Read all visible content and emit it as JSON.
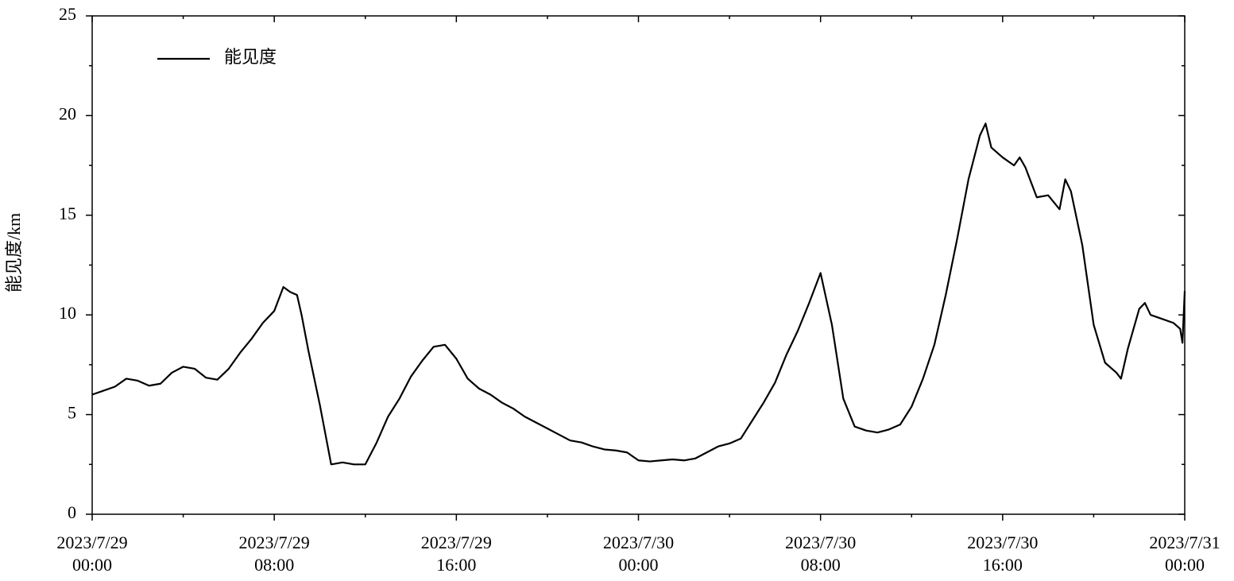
{
  "chart_data": {
    "type": "line",
    "y_label": "能见度/km",
    "legend": "upper left",
    "x": [
      "2023/7/29 00:00",
      "2023/7/29 01:00",
      "2023/7/29 01:30",
      "2023/7/29 02:00",
      "2023/7/29 02:30",
      "2023/7/29 03:00",
      "2023/7/29 03:30",
      "2023/7/29 04:00",
      "2023/7/29 04:30",
      "2023/7/29 05:00",
      "2023/7/29 05:30",
      "2023/7/29 06:00",
      "2023/7/29 06:30",
      "2023/7/29 07:00",
      "2023/7/29 07:30",
      "2023/7/29 08:00",
      "2023/7/29 08:24",
      "2023/7/29 08:42",
      "2023/7/29 09:00",
      "2023/7/29 09:12",
      "2023/7/29 09:30",
      "2023/7/29 10:00",
      "2023/7/29 10:30",
      "2023/7/29 11:00",
      "2023/7/29 11:30",
      "2023/7/29 12:00",
      "2023/7/29 12:30",
      "2023/7/29 13:00",
      "2023/7/29 13:30",
      "2023/7/29 14:00",
      "2023/7/29 14:30",
      "2023/7/29 15:00",
      "2023/7/29 15:30",
      "2023/7/29 16:00",
      "2023/7/29 16:30",
      "2023/7/29 17:00",
      "2023/7/29 17:30",
      "2023/7/29 18:00",
      "2023/7/29 18:30",
      "2023/7/29 19:00",
      "2023/7/29 19:30",
      "2023/7/29 20:00",
      "2023/7/29 20:30",
      "2023/7/29 21:00",
      "2023/7/29 21:30",
      "2023/7/29 22:00",
      "2023/7/29 22:30",
      "2023/7/29 23:00",
      "2023/7/29 23:30",
      "2023/7/30 00:00",
      "2023/7/30 00:30",
      "2023/7/30 01:00",
      "2023/7/30 01:30",
      "2023/7/30 02:00",
      "2023/7/30 02:30",
      "2023/7/30 03:00",
      "2023/7/30 03:30",
      "2023/7/30 04:00",
      "2023/7/30 04:30",
      "2023/7/30 05:00",
      "2023/7/30 05:30",
      "2023/7/30 06:00",
      "2023/7/30 06:30",
      "2023/7/30 07:00",
      "2023/7/30 07:30",
      "2023/7/30 08:00",
      "2023/7/30 08:30",
      "2023/7/30 09:00",
      "2023/7/30 09:30",
      "2023/7/30 10:00",
      "2023/7/30 10:30",
      "2023/7/30 11:00",
      "2023/7/30 11:30",
      "2023/7/30 12:00",
      "2023/7/30 12:30",
      "2023/7/30 13:00",
      "2023/7/30 13:30",
      "2023/7/30 14:00",
      "2023/7/30 14:30",
      "2023/7/30 15:00",
      "2023/7/30 15:15",
      "2023/7/30 15:30",
      "2023/7/30 16:00",
      "2023/7/30 16:30",
      "2023/7/30 16:45",
      "2023/7/30 17:00",
      "2023/7/30 17:30",
      "2023/7/30 18:00",
      "2023/7/30 18:30",
      "2023/7/30 18:45",
      "2023/7/30 19:00",
      "2023/7/30 19:30",
      "2023/7/30 20:00",
      "2023/7/30 20:30",
      "2023/7/30 21:00",
      "2023/7/30 21:12",
      "2023/7/30 21:30",
      "2023/7/30 22:00",
      "2023/7/30 22:15",
      "2023/7/30 22:30",
      "2023/7/30 23:00",
      "2023/7/30 23:30",
      "2023/7/30 23:48",
      "2023/7/30 23:54",
      "2023/7/31 00:00"
    ],
    "series": [
      {
        "name": "能见度",
        "color": "#000000",
        "values": [
          6.0,
          6.4,
          6.8,
          6.7,
          6.45,
          6.55,
          7.1,
          7.4,
          7.3,
          6.85,
          6.75,
          7.3,
          8.1,
          8.8,
          9.6,
          10.2,
          11.4,
          11.15,
          11.0,
          10.0,
          8.2,
          5.5,
          2.5,
          2.6,
          2.5,
          2.5,
          3.6,
          4.9,
          5.8,
          6.9,
          7.7,
          8.4,
          8.5,
          7.8,
          6.8,
          6.3,
          6.0,
          5.6,
          5.3,
          4.9,
          4.6,
          4.3,
          4.0,
          3.7,
          3.6,
          3.4,
          3.25,
          3.2,
          3.1,
          2.7,
          2.65,
          2.7,
          2.75,
          2.7,
          2.8,
          3.1,
          3.4,
          3.55,
          3.8,
          4.7,
          5.6,
          6.6,
          8.0,
          9.2,
          10.6,
          12.1,
          9.5,
          5.8,
          4.4,
          4.2,
          4.1,
          4.25,
          4.5,
          5.4,
          6.8,
          8.5,
          11.0,
          13.8,
          16.8,
          19.0,
          19.6,
          18.4,
          17.9,
          17.5,
          17.9,
          17.4,
          15.9,
          16.0,
          15.3,
          16.8,
          16.2,
          13.5,
          9.5,
          7.6,
          7.1,
          6.8,
          8.3,
          10.3,
          10.6,
          10.0,
          9.8,
          9.6,
          9.3,
          8.6,
          11.2
        ]
      }
    ],
    "xlim": [
      "2023/7/29 00:00",
      "2023/7/31 00:00"
    ],
    "xticks": [
      {
        "value": "2023/7/29 00:00",
        "label": "2023/7/29\n00:00"
      },
      {
        "value": "2023/7/29 08:00",
        "label": "2023/7/29\n08:00"
      },
      {
        "value": "2023/7/29 16:00",
        "label": "2023/7/29\n16:00"
      },
      {
        "value": "2023/7/30 00:00",
        "label": "2023/7/30\n00:00"
      },
      {
        "value": "2023/7/30 08:00",
        "label": "2023/7/30\n08:00"
      },
      {
        "value": "2023/7/30 16:00",
        "label": "2023/7/30\n16:00"
      },
      {
        "value": "2023/7/31 00:00",
        "label": "2023/7/31\n00:00"
      }
    ],
    "ylim": [
      0,
      25
    ],
    "yticks": [
      0,
      5,
      10,
      15,
      20,
      25
    ],
    "grid": false
  }
}
